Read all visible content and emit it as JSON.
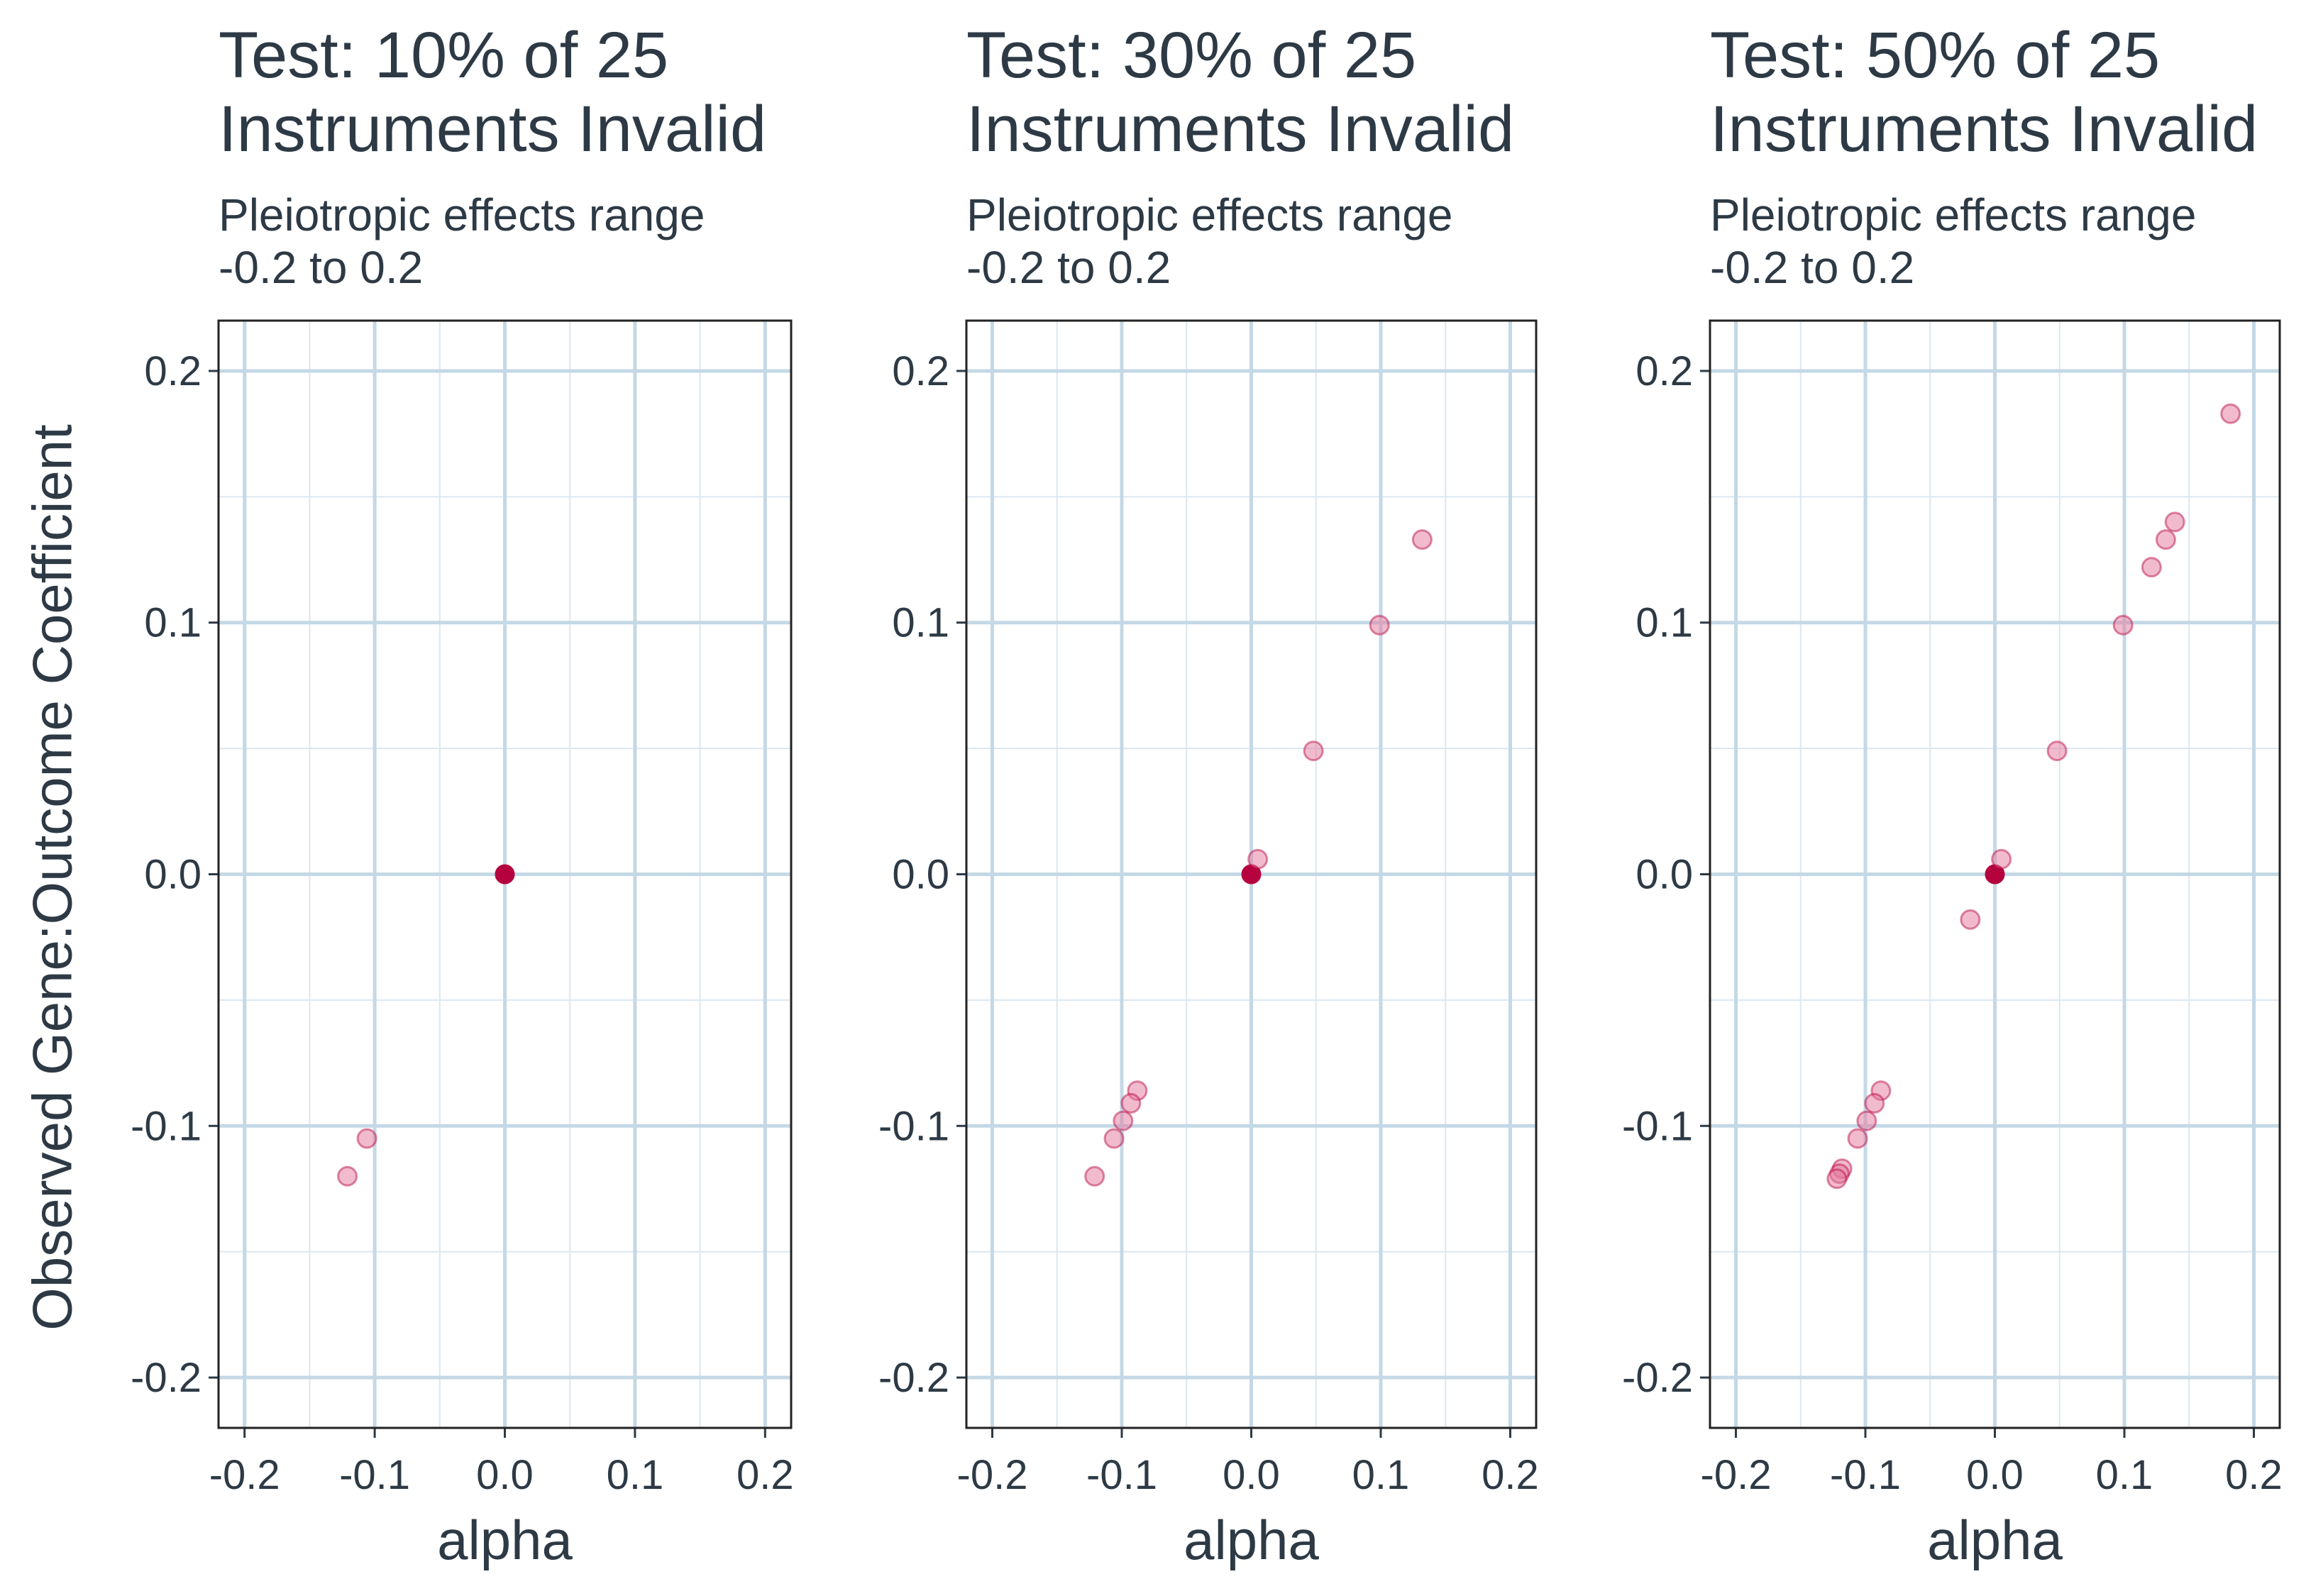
{
  "colors": {
    "grid_major": "#c4d8e6",
    "grid_minor": "#dbe7f0",
    "axis_text": "#2d3a45",
    "point_invalid": "#e3789c",
    "point_valid": "#b5023f"
  },
  "ylabel": "Observed Gene:Outcome Coefficient",
  "chart_data": [
    {
      "type": "scatter",
      "title": "Test: 10% of 25\nInstruments Invalid",
      "subtitle": "Pleiotropic effects range\n-0.2 to 0.2",
      "xlabel": "alpha",
      "ylabel": "Observed Gene:Outcome Coefficient",
      "xlim": [
        -0.22,
        0.22
      ],
      "ylim": [
        -0.22,
        0.22
      ],
      "xticks": [
        "-0.2",
        "-0.1",
        "0.0",
        "0.1",
        "0.2"
      ],
      "yticks": [
        "0.2",
        "0.1",
        "0.0",
        "-0.1",
        "-0.2"
      ],
      "grid": true,
      "points": [
        {
          "x": 0.0,
          "y": 0.0,
          "highlight": true
        },
        {
          "x": -0.106,
          "y": -0.105
        },
        {
          "x": -0.121,
          "y": -0.12
        }
      ]
    },
    {
      "type": "scatter",
      "title": "Test: 30% of 25\nInstruments Invalid",
      "subtitle": "Pleiotropic effects range\n-0.2 to 0.2",
      "xlabel": "alpha",
      "ylabel": "",
      "xlim": [
        -0.22,
        0.22
      ],
      "ylim": [
        -0.22,
        0.22
      ],
      "xticks": [
        "-0.2",
        "-0.1",
        "0.0",
        "0.1",
        "0.2"
      ],
      "yticks": [
        "0.2",
        "0.1",
        "0.0",
        "-0.1",
        "-0.2"
      ],
      "grid": true,
      "points": [
        {
          "x": 0.0,
          "y": 0.0,
          "highlight": true
        },
        {
          "x": 0.005,
          "y": 0.006
        },
        {
          "x": 0.048,
          "y": 0.049
        },
        {
          "x": 0.099,
          "y": 0.099
        },
        {
          "x": 0.132,
          "y": 0.133
        },
        {
          "x": -0.088,
          "y": -0.086
        },
        {
          "x": -0.093,
          "y": -0.091
        },
        {
          "x": -0.099,
          "y": -0.098
        },
        {
          "x": -0.106,
          "y": -0.105
        },
        {
          "x": -0.121,
          "y": -0.12
        }
      ]
    },
    {
      "type": "scatter",
      "title": "Test: 50% of 25\nInstruments Invalid",
      "subtitle": "Pleiotropic effects range\n-0.2 to 0.2",
      "xlabel": "alpha",
      "ylabel": "",
      "xlim": [
        -0.22,
        0.22
      ],
      "ylim": [
        -0.22,
        0.22
      ],
      "xticks": [
        "-0.2",
        "-0.1",
        "0.0",
        "0.1",
        "0.2"
      ],
      "yticks": [
        "0.2",
        "0.1",
        "0.0",
        "-0.1",
        "-0.2"
      ],
      "grid": true,
      "points": [
        {
          "x": 0.0,
          "y": 0.0,
          "highlight": true
        },
        {
          "x": 0.005,
          "y": 0.006
        },
        {
          "x": -0.019,
          "y": -0.018
        },
        {
          "x": 0.048,
          "y": 0.049
        },
        {
          "x": 0.099,
          "y": 0.099
        },
        {
          "x": 0.121,
          "y": 0.122
        },
        {
          "x": 0.132,
          "y": 0.133
        },
        {
          "x": 0.139,
          "y": 0.14
        },
        {
          "x": 0.182,
          "y": 0.183
        },
        {
          "x": -0.088,
          "y": -0.086
        },
        {
          "x": -0.093,
          "y": -0.091
        },
        {
          "x": -0.099,
          "y": -0.098
        },
        {
          "x": -0.106,
          "y": -0.105
        },
        {
          "x": -0.118,
          "y": -0.117
        },
        {
          "x": -0.12,
          "y": -0.119
        },
        {
          "x": -0.122,
          "y": -0.121
        }
      ]
    }
  ]
}
